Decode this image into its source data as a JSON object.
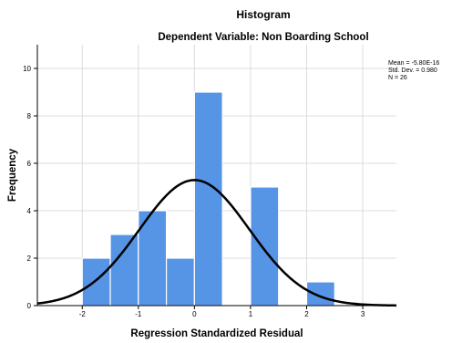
{
  "chart_data": {
    "type": "bar",
    "subtype": "histogram",
    "title": "Histogram",
    "subtitle": "Dependent Variable: Non Boarding School",
    "xlabel": "Regression Standardized Residual",
    "ylabel": "Frequency",
    "xlim": [
      -2.8,
      3.6
    ],
    "ylim": [
      0,
      11
    ],
    "x_ticks": [
      -2,
      -1,
      0,
      1,
      2,
      3
    ],
    "y_ticks": [
      0,
      2,
      4,
      6,
      8,
      10
    ],
    "bin_width": 0.5,
    "bins": [
      {
        "start": -2.0,
        "end": -1.5,
        "count": 2
      },
      {
        "start": -1.5,
        "end": -1.0,
        "count": 3
      },
      {
        "start": -1.0,
        "end": -0.5,
        "count": 4
      },
      {
        "start": -0.5,
        "end": 0.0,
        "count": 2
      },
      {
        "start": 0.0,
        "end": 0.5,
        "count": 9
      },
      {
        "start": 0.5,
        "end": 1.0,
        "count": 0
      },
      {
        "start": 1.0,
        "end": 1.5,
        "count": 5
      },
      {
        "start": 1.5,
        "end": 2.0,
        "count": 0
      },
      {
        "start": 2.0,
        "end": 2.5,
        "count": 1
      }
    ],
    "normal_curve": {
      "mean": 0,
      "sd": 0.98,
      "n": 26,
      "bin_width": 0.5
    },
    "stats": [
      "Mean = -5.80E-16",
      "Std. Dev. = 0.980",
      "N = 26"
    ],
    "grid": true,
    "legend_position": "top-right",
    "colors": {
      "bar": "#5694e6",
      "bar_edge": "#ffffff",
      "curve": "#000000",
      "grid": "#dcdcdc"
    }
  }
}
